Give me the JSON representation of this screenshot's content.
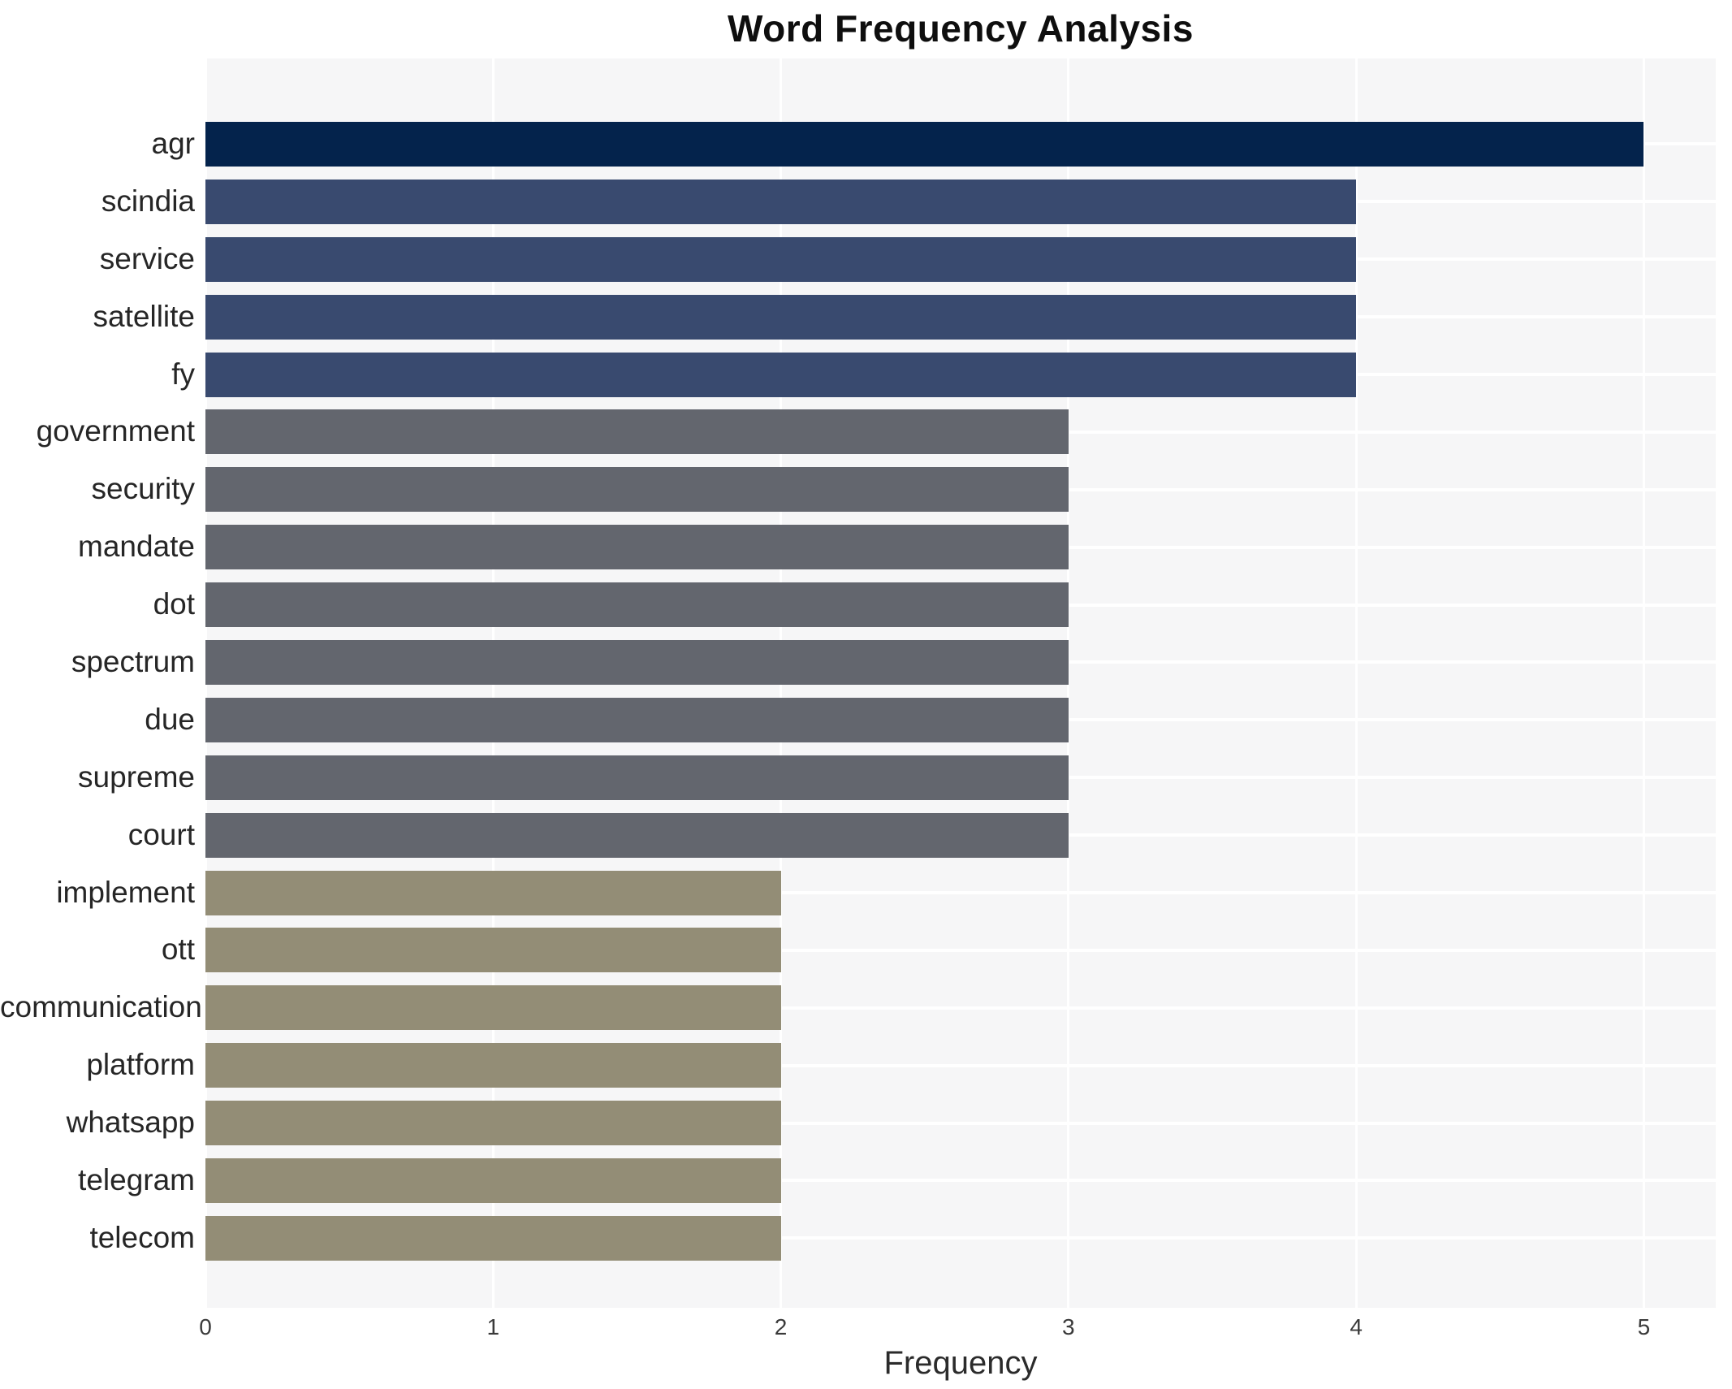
{
  "chart_data": {
    "type": "bar",
    "orientation": "horizontal",
    "title": "Word Frequency Analysis",
    "xlabel": "Frequency",
    "ylabel": "",
    "categories": [
      "agr",
      "scindia",
      "service",
      "satellite",
      "fy",
      "government",
      "security",
      "mandate",
      "dot",
      "spectrum",
      "due",
      "supreme",
      "court",
      "implement",
      "ott",
      "communication",
      "platform",
      "whatsapp",
      "telegram",
      "telecom"
    ],
    "values": [
      5,
      4,
      4,
      4,
      4,
      3,
      3,
      3,
      3,
      3,
      3,
      3,
      3,
      2,
      2,
      2,
      2,
      2,
      2,
      2
    ],
    "bar_colors": [
      "#04234c",
      "#394a6f",
      "#394a6f",
      "#394a6f",
      "#394a6f",
      "#63666e",
      "#63666e",
      "#63666e",
      "#63666e",
      "#63666e",
      "#63666e",
      "#63666e",
      "#63666e",
      "#938d76",
      "#938d76",
      "#938d76",
      "#938d76",
      "#938d76",
      "#938d76",
      "#938d76"
    ],
    "xticks": [
      0,
      1,
      2,
      3,
      4,
      5
    ],
    "xlim": [
      0,
      5.25
    ],
    "grid": true,
    "grid_color": "#ffffff",
    "plot_bg": "#f6f6f7",
    "legend": false
  }
}
